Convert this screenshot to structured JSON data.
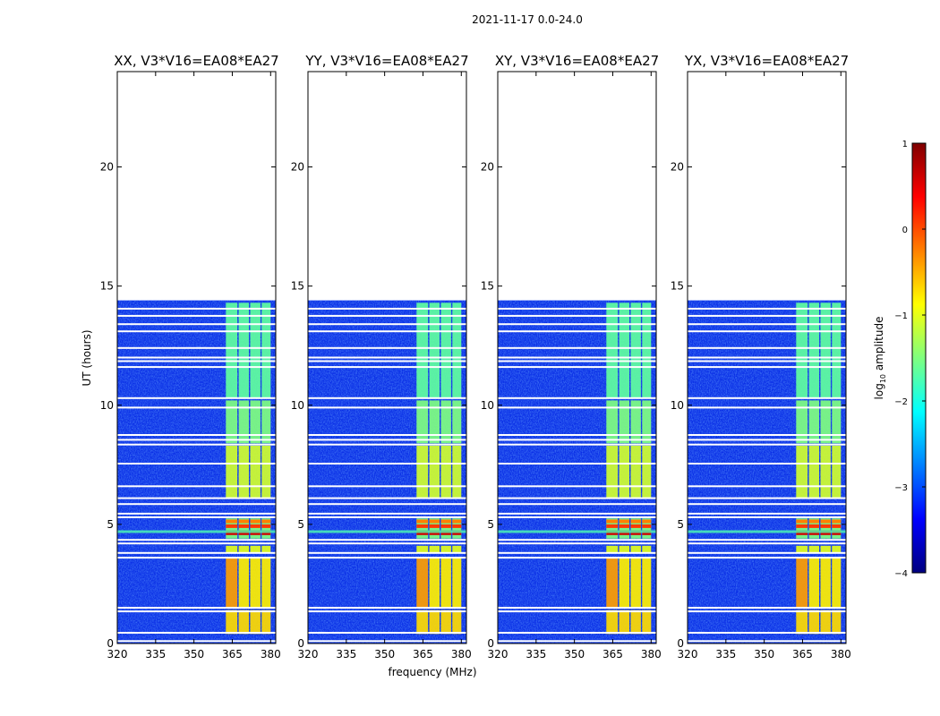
{
  "chart_data": {
    "type": "heatmap",
    "title": "2021-11-17 0.0-24.0",
    "xlabel": "frequency (MHz)",
    "ylabel": "UT (hours)",
    "xlim": [
      320,
      382
    ],
    "ylim": [
      0,
      24
    ],
    "x_ticks": [
      320,
      335,
      350,
      365,
      380
    ],
    "y_ticks": [
      0,
      5,
      10,
      15,
      20
    ],
    "panels": [
      {
        "title": "XX, V3*V16=EA08*EA27"
      },
      {
        "title": "YY, V3*V16=EA08*EA27"
      },
      {
        "title": "XY, V3*V16=EA08*EA27"
      },
      {
        "title": "YX, V3*V16=EA08*EA27"
      }
    ],
    "data_extent_hours": [
      0,
      14.4
    ],
    "bright_channels_mhz": [
      [
        362.5,
        367
      ],
      [
        367.5,
        371.5
      ],
      [
        372,
        376
      ],
      [
        376.5,
        380
      ]
    ],
    "colorbar": {
      "label": "log10 amplitude",
      "range": [
        -4,
        1
      ],
      "ticks": [
        1,
        0,
        -1,
        -2,
        -3,
        -4
      ],
      "tick_labels": [
        "1",
        "0",
        "−1",
        "−2",
        "−3",
        "−4"
      ],
      "colormap": "jet"
    },
    "colors": {
      "axes": "#000000",
      "background": "#ffffff"
    }
  }
}
